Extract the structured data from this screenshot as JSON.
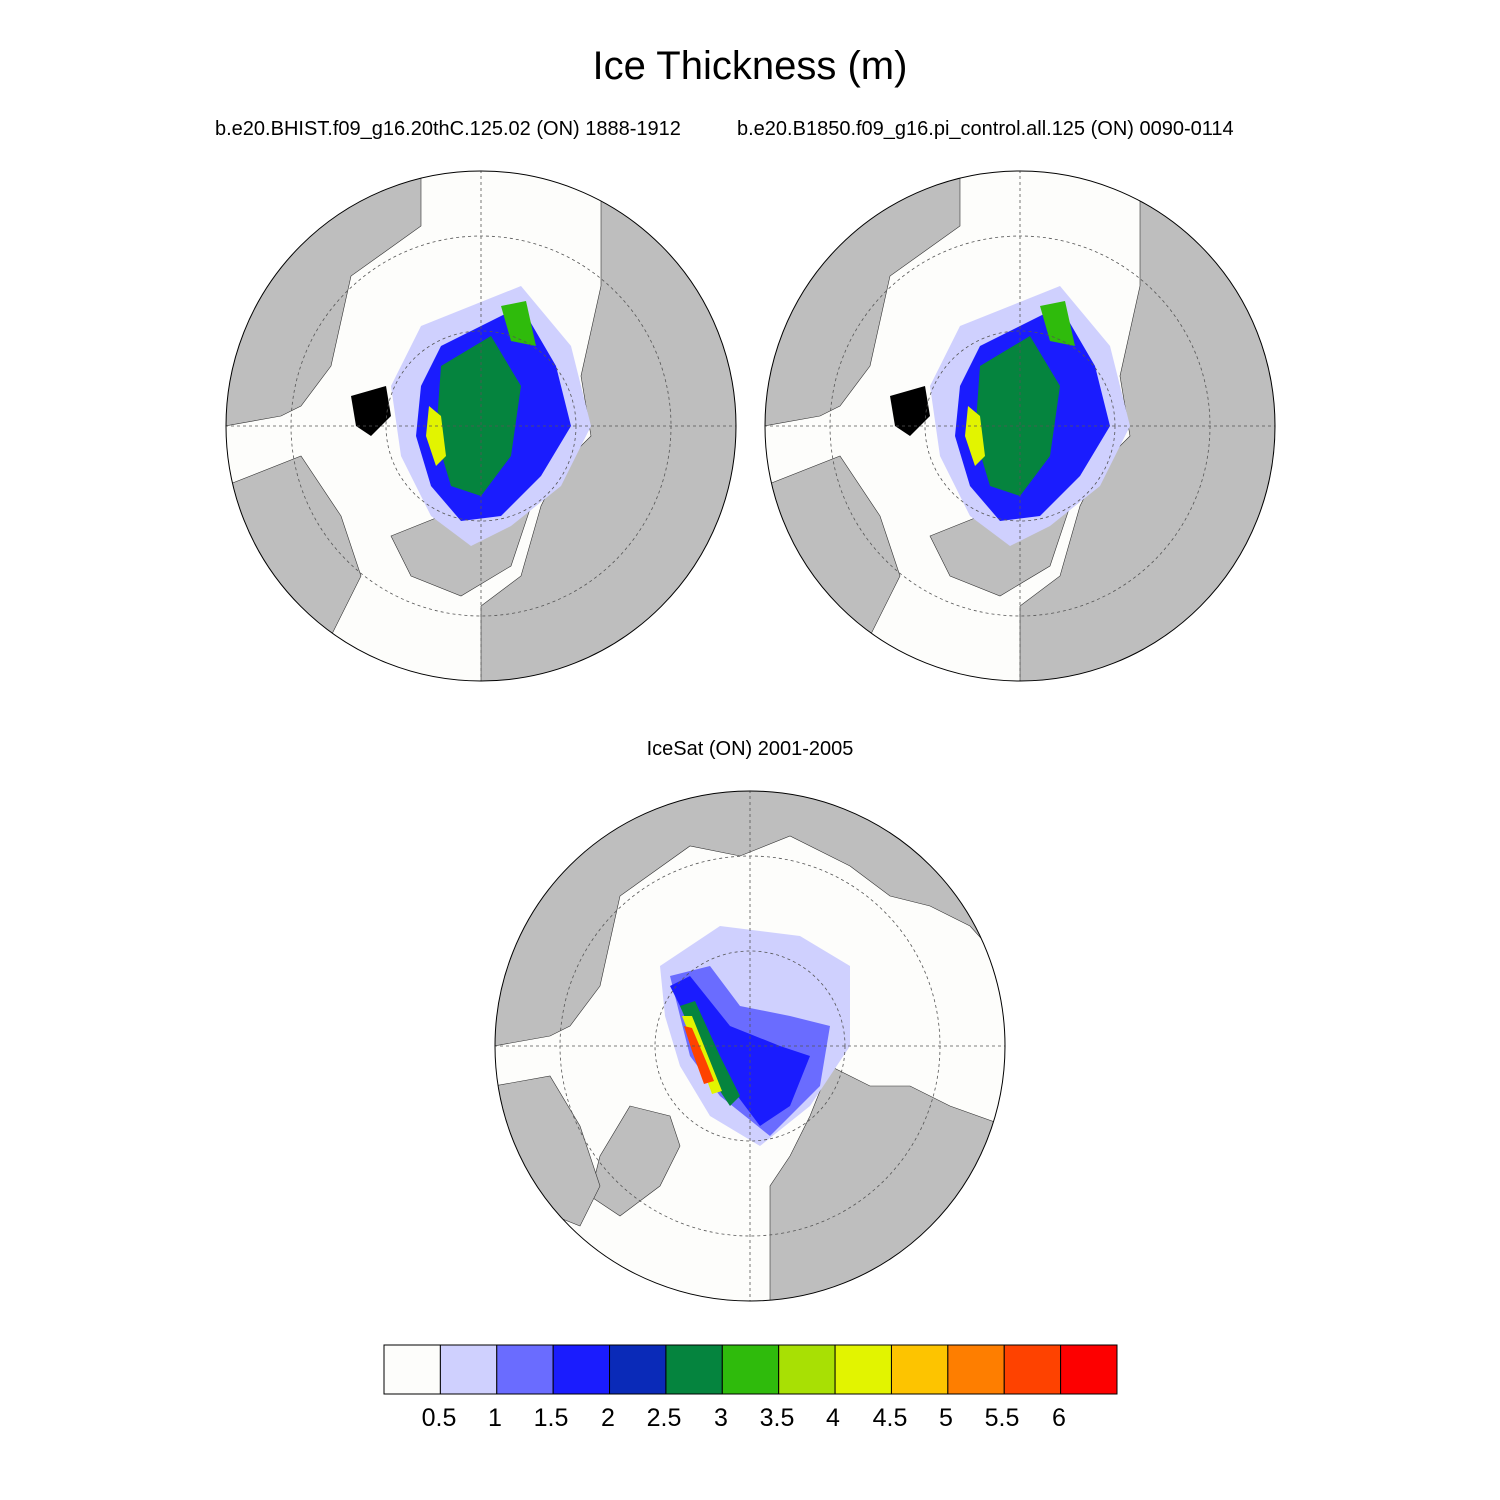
{
  "title": "Ice Thickness (m)",
  "panels": [
    {
      "id": "left",
      "subtitle": "b.e20.BHIST.f09_g16.20thC.125.02 (ON) 1888-1912"
    },
    {
      "id": "right",
      "subtitle": "b.e20.B1850.f09_g16.pi_control.all.125 (ON) 0090-0114"
    },
    {
      "id": "bottom",
      "subtitle": "IceSat (ON) 2001-2005"
    }
  ],
  "colors": {
    "land": "#bebebe",
    "ocean": "#fdfdfb",
    "grid": "#555555"
  },
  "colorbar": {
    "labels": [
      "0.5",
      "1",
      "1.5",
      "2",
      "2.5",
      "3",
      "3.5",
      "4",
      "4.5",
      "5",
      "5.5",
      "6"
    ],
    "colors": [
      "#fdfdfb",
      "#cfd0fe",
      "#6a6cff",
      "#1a1cfe",
      "#0a2ab8",
      "#05843e",
      "#2fbb0c",
      "#a8e004",
      "#e2f400",
      "#fdc400",
      "#fe7e00",
      "#fe4200",
      "#fd0000"
    ]
  }
}
